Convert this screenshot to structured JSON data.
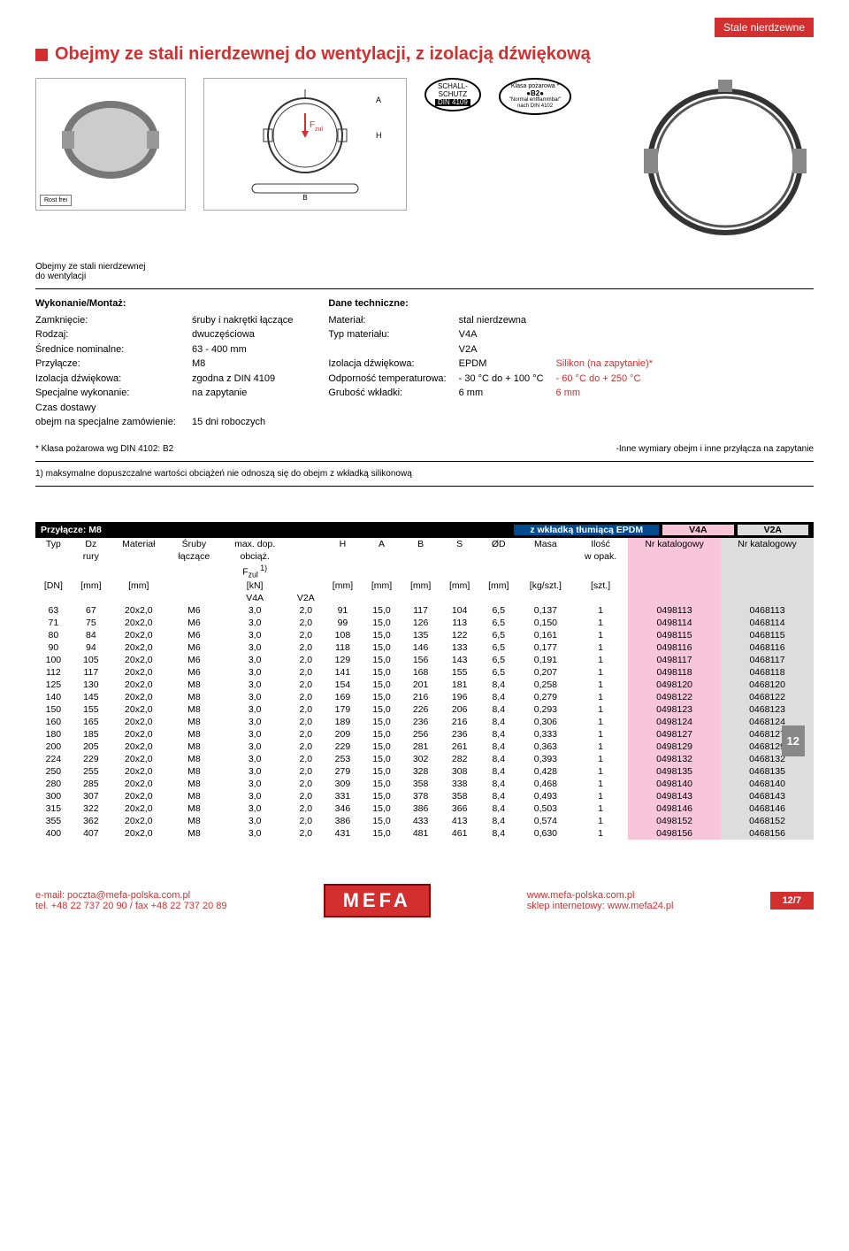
{
  "header_badge": "Stale nierdzewne",
  "title": "Obejmy ze stali nierdzewnej do wentylacji, z izolacją dźwiękową",
  "badges": {
    "schall": {
      "l1": "SCHALL-",
      "l2": "SCHUTZ",
      "l3": "DIN 4109"
    },
    "fire": {
      "l1": "Klasa pożarowa *",
      "l2": "●B2●",
      "l3": "\"Normal entflammbar\"",
      "l4": "nach DIN 4102"
    },
    "fzul": "F",
    "fzul_sub": "zul",
    "rost": "Rost frei"
  },
  "caption": {
    "l1": "Obejmy ze stali nierdzewnej",
    "l2": "do wentylacji"
  },
  "specs_left_title": "Wykonanie/Montaż:",
  "specs_left": [
    [
      "Zamknięcie:",
      "śruby i nakrętki łączące"
    ],
    [
      "Rodzaj:",
      "dwuczęściowa"
    ],
    [
      "Średnice nominalne:",
      "63 - 400 mm"
    ],
    [
      "Przyłącze:",
      "M8"
    ],
    [
      "Izolacja dźwiękowa:",
      "zgodna z DIN 4109"
    ],
    [
      "Specjalne wykonanie:",
      "na zapytanie"
    ],
    [
      "Czas dostawy",
      ""
    ],
    [
      "obejm na specjalne zamówienie:",
      "15 dni roboczych"
    ]
  ],
  "specs_right_title": "Dane techniczne:",
  "specs_right": [
    [
      "Materiał:",
      "stal nierdzewna",
      ""
    ],
    [
      "Typ materiału:",
      "V4A",
      ""
    ],
    [
      "",
      "V2A",
      ""
    ],
    [
      "Izolacja dźwiękowa:",
      "EPDM",
      "Silikon (na zapytanie)*"
    ],
    [
      "Odporność temperaturowa:",
      "- 30 °C do + 100 °C",
      "- 60 °C do + 250 °C"
    ],
    [
      "Grubość wkładki:",
      "6 mm",
      "6 mm"
    ]
  ],
  "note_left": "* Klasa pożarowa wg DIN 4102: B2",
  "note_right": "-Inne wymiary obejm i inne przyłącza na zapytanie",
  "footnote": "1) maksymalne dopuszczalne wartości obciążeń nie odnoszą się do obejm z wkładką silikonową",
  "table": {
    "bar_left": "Przyłącze: M8",
    "bar_mid": "z wkładką tłumiącą EPDM",
    "bar_v4a": "V4A",
    "bar_v2a": "V2A",
    "headers1": [
      "Typ",
      "Dz",
      "Materiał",
      "Śruby",
      "max. dop.",
      "",
      "H",
      "A",
      "B",
      "S",
      "ØD",
      "Masa",
      "Ilość",
      "Nr katalogowy",
      "Nr katalogowy"
    ],
    "headers2": [
      "",
      "rury",
      "",
      "łączące",
      "obciąż.",
      "",
      "",
      "",
      "",
      "",
      "",
      "",
      "w opak.",
      "",
      ""
    ],
    "headers3": [
      "",
      "",
      "",
      "",
      "F zul 1)",
      "",
      "",
      "",
      "",
      "",
      "",
      "",
      "",
      "",
      ""
    ],
    "headers4": [
      "[DN]",
      "[mm]",
      "[mm]",
      "",
      "[kN]",
      "",
      "[mm]",
      "[mm]",
      "[mm]",
      "[mm]",
      "[mm]",
      "[kg/szt.]",
      "[szt.]",
      "",
      ""
    ],
    "sub": [
      "",
      "",
      "",
      "",
      "V4A",
      "V2A",
      "",
      "",
      "",
      "",
      "",
      "",
      "",
      "",
      ""
    ],
    "rows": [
      [
        "63",
        "67",
        "20x2,0",
        "M6",
        "3,0",
        "2,0",
        "91",
        "15,0",
        "117",
        "104",
        "6,5",
        "0,137",
        "1",
        "0498113",
        "0468113"
      ],
      [
        "71",
        "75",
        "20x2,0",
        "M6",
        "3,0",
        "2,0",
        "99",
        "15,0",
        "126",
        "113",
        "6,5",
        "0,150",
        "1",
        "0498114",
        "0468114"
      ],
      [
        "80",
        "84",
        "20x2,0",
        "M6",
        "3,0",
        "2,0",
        "108",
        "15,0",
        "135",
        "122",
        "6,5",
        "0,161",
        "1",
        "0498115",
        "0468115"
      ],
      [
        "90",
        "94",
        "20x2,0",
        "M6",
        "3,0",
        "2,0",
        "118",
        "15,0",
        "146",
        "133",
        "6,5",
        "0,177",
        "1",
        "0498116",
        "0468116"
      ],
      [
        "100",
        "105",
        "20x2,0",
        "M6",
        "3,0",
        "2,0",
        "129",
        "15,0",
        "156",
        "143",
        "6,5",
        "0,191",
        "1",
        "0498117",
        "0468117"
      ],
      [
        "112",
        "117",
        "20x2,0",
        "M6",
        "3,0",
        "2,0",
        "141",
        "15,0",
        "168",
        "155",
        "6,5",
        "0,207",
        "1",
        "0498118",
        "0468118"
      ],
      [
        "125",
        "130",
        "20x2,0",
        "M8",
        "3,0",
        "2,0",
        "154",
        "15,0",
        "201",
        "181",
        "8,4",
        "0,258",
        "1",
        "0498120",
        "0468120"
      ],
      [
        "140",
        "145",
        "20x2,0",
        "M8",
        "3,0",
        "2,0",
        "169",
        "15,0",
        "216",
        "196",
        "8,4",
        "0,279",
        "1",
        "0498122",
        "0468122"
      ],
      [
        "150",
        "155",
        "20x2,0",
        "M8",
        "3,0",
        "2,0",
        "179",
        "15,0",
        "226",
        "206",
        "8,4",
        "0,293",
        "1",
        "0498123",
        "0468123"
      ],
      [
        "160",
        "165",
        "20x2,0",
        "M8",
        "3,0",
        "2,0",
        "189",
        "15,0",
        "236",
        "216",
        "8,4",
        "0,306",
        "1",
        "0498124",
        "0468124"
      ],
      [
        "180",
        "185",
        "20x2,0",
        "M8",
        "3,0",
        "2,0",
        "209",
        "15,0",
        "256",
        "236",
        "8,4",
        "0,333",
        "1",
        "0498127",
        "0468127"
      ],
      [
        "200",
        "205",
        "20x2,0",
        "M8",
        "3,0",
        "2,0",
        "229",
        "15,0",
        "281",
        "261",
        "8,4",
        "0,363",
        "1",
        "0498129",
        "0468129"
      ],
      [
        "224",
        "229",
        "20x2,0",
        "M8",
        "3,0",
        "2,0",
        "253",
        "15,0",
        "302",
        "282",
        "8,4",
        "0,393",
        "1",
        "0498132",
        "0468132"
      ],
      [
        "250",
        "255",
        "20x2,0",
        "M8",
        "3,0",
        "2,0",
        "279",
        "15,0",
        "328",
        "308",
        "8,4",
        "0,428",
        "1",
        "0498135",
        "0468135"
      ],
      [
        "280",
        "285",
        "20x2,0",
        "M8",
        "3,0",
        "2,0",
        "309",
        "15,0",
        "358",
        "338",
        "8,4",
        "0,468",
        "1",
        "0498140",
        "0468140"
      ],
      [
        "300",
        "307",
        "20x2,0",
        "M8",
        "3,0",
        "2,0",
        "331",
        "15,0",
        "378",
        "358",
        "8,4",
        "0,493",
        "1",
        "0498143",
        "0468143"
      ],
      [
        "315",
        "322",
        "20x2,0",
        "M8",
        "3,0",
        "2,0",
        "346",
        "15,0",
        "386",
        "366",
        "8,4",
        "0,503",
        "1",
        "0498146",
        "0468146"
      ],
      [
        "355",
        "362",
        "20x2,0",
        "M8",
        "3,0",
        "2,0",
        "386",
        "15,0",
        "433",
        "413",
        "8,4",
        "0,574",
        "1",
        "0498152",
        "0468152"
      ],
      [
        "400",
        "407",
        "20x2,0",
        "M8",
        "3,0",
        "2,0",
        "431",
        "15,0",
        "481",
        "461",
        "8,4",
        "0,630",
        "1",
        "0498156",
        "0468156"
      ]
    ]
  },
  "side_tab": "12",
  "footer": {
    "email": "e-mail: poczta@mefa-polska.com.pl",
    "tel": "tel. +48 22 737 20 90  /  fax +48 22 737 20 89",
    "logo": "MEFA",
    "www": "www.mefa-polska.com.pl",
    "shop": "sklep internetowy: www.mefa24.pl",
    "page": "12/7"
  },
  "colors": {
    "red": "#d32f2f",
    "pink": "#f8c6d8",
    "gray": "#dddddd",
    "blue": "#004a90"
  }
}
